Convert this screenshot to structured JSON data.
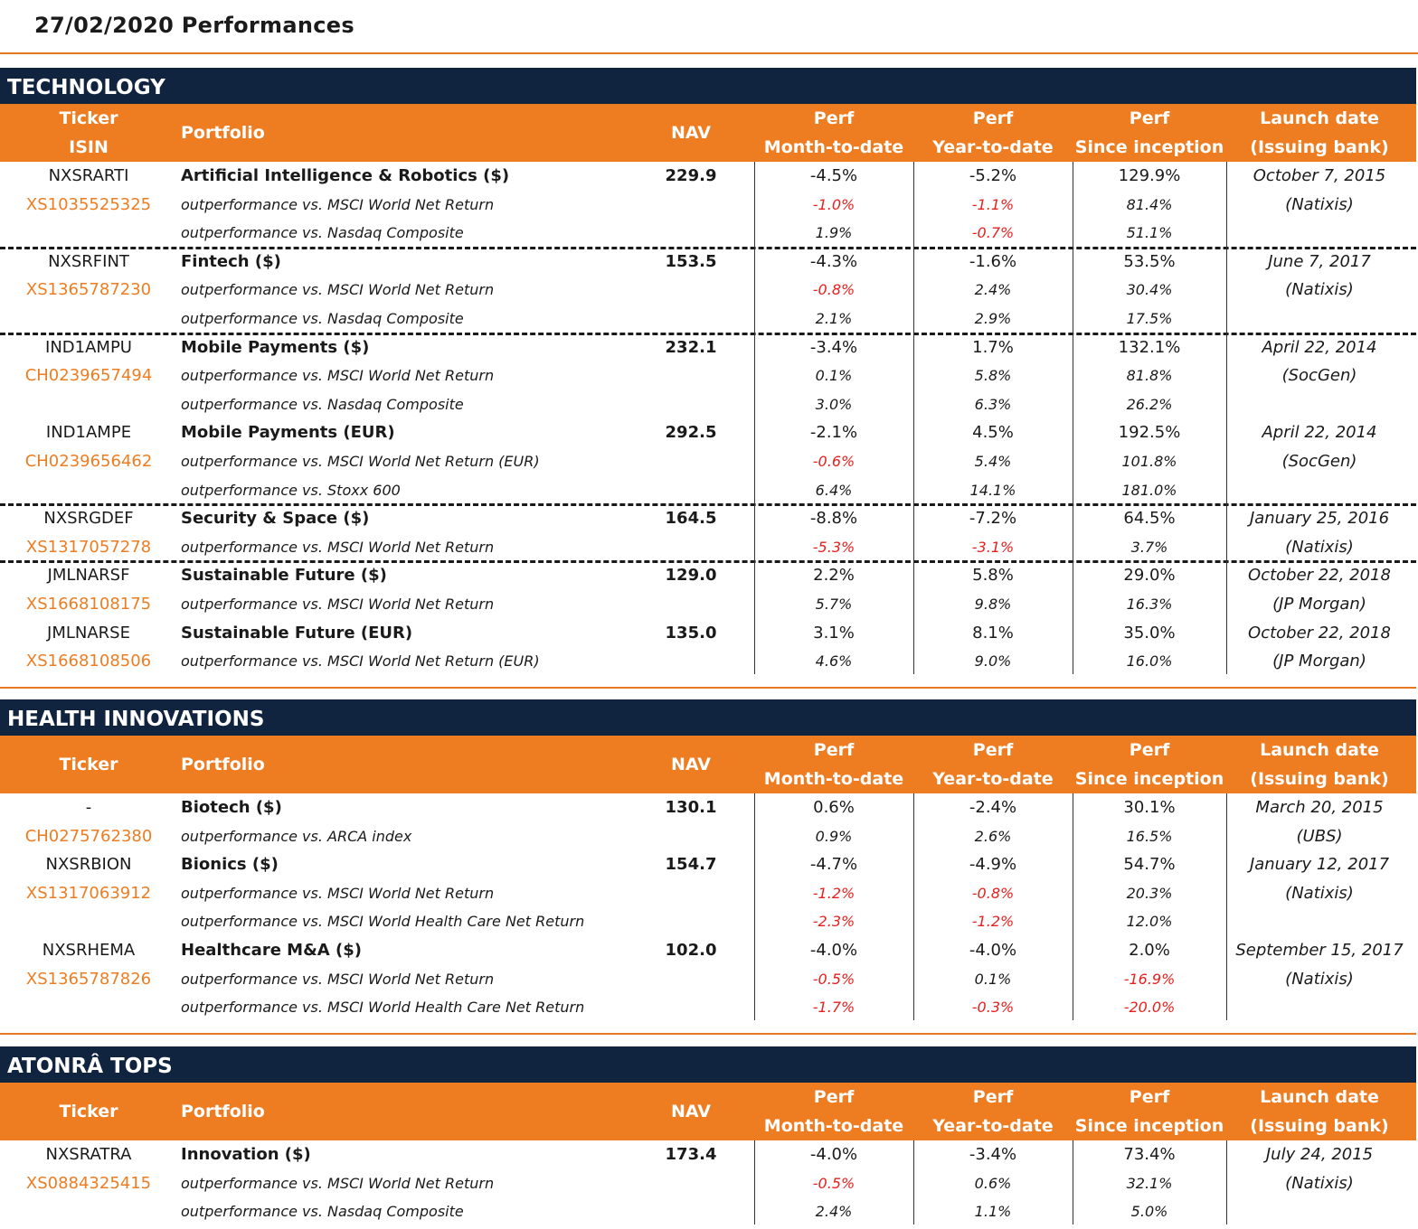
{
  "page_title": "27/02/2020  Performances",
  "columns": {
    "ticker": "Ticker",
    "isin": "ISIN",
    "portfolio": "Portfolio",
    "nav": "NAV",
    "perf": "Perf",
    "mtd": "Month-to-date",
    "ytd": "Year-to-date",
    "si": "Since inception",
    "launch": "Launch date",
    "issuer": "(Issuing bank)"
  },
  "sections": [
    {
      "name": "TECHNOLOGY",
      "show_isin_header": true,
      "funds": [
        {
          "ticker": "NXSRARTI",
          "isin": "XS1035525325",
          "name": "Artificial Intelligence & Robotics ($)",
          "nav": "229.9",
          "mtd": "-4.5%",
          "ytd": "-5.2%",
          "si": "129.9%",
          "date": "October 7, 2015",
          "bank": "(Natixis)",
          "subs": [
            {
              "label": "outperformance vs. MSCI World Net Return",
              "mtd": "-1.0%",
              "ytd": "-1.1%",
              "si": "81.4%"
            },
            {
              "label": "outperformance vs. Nasdaq Composite",
              "mtd": "1.9%",
              "ytd": "-0.7%",
              "si": "51.1%"
            }
          ]
        },
        {
          "ticker": "NXSRFINT",
          "isin": "XS1365787230",
          "name": "Fintech ($)",
          "nav": "153.5",
          "mtd": "-4.3%",
          "ytd": "-1.6%",
          "si": "53.5%",
          "date": "June 7, 2017",
          "bank": "(Natixis)",
          "subs": [
            {
              "label": "outperformance vs. MSCI World Net Return",
              "mtd": "-0.8%",
              "ytd": "2.4%",
              "si": "30.4%"
            },
            {
              "label": "outperformance vs. Nasdaq Composite",
              "mtd": "2.1%",
              "ytd": "2.9%",
              "si": "17.5%"
            }
          ]
        },
        {
          "ticker": "IND1AMPU",
          "isin": "CH0239657494",
          "name": "Mobile Payments ($)",
          "nav": "232.1",
          "mtd": "-3.4%",
          "ytd": "1.7%",
          "si": "132.1%",
          "date": "April 22, 2014",
          "bank": "(SocGen)",
          "subs": [
            {
              "label": "outperformance vs. MSCI World Net Return",
              "mtd": "0.1%",
              "ytd": "5.8%",
              "si": "81.8%"
            },
            {
              "label": "outperformance vs. Nasdaq Composite",
              "mtd": "3.0%",
              "ytd": "6.3%",
              "si": "26.2%"
            }
          ]
        },
        {
          "ticker": "IND1AMPE",
          "isin": "CH0239656462",
          "name": "Mobile Payments (EUR)",
          "nav": "292.5",
          "mtd": "-2.1%",
          "ytd": "4.5%",
          "si": "192.5%",
          "date": "April 22, 2014",
          "bank": "(SocGen)",
          "subs": [
            {
              "label": "outperformance vs. MSCI World Net Return (EUR)",
              "mtd": "-0.6%",
              "ytd": "5.4%",
              "si": "101.8%"
            },
            {
              "label": "outperformance vs. Stoxx 600",
              "mtd": "6.4%",
              "ytd": "14.1%",
              "si": "181.0%"
            }
          ]
        },
        {
          "ticker": "NXSRGDEF",
          "isin": "XS1317057278",
          "name": "Security & Space ($)",
          "nav": "164.5",
          "mtd": "-8.8%",
          "ytd": "-7.2%",
          "si": "64.5%",
          "date": "January 25, 2016",
          "bank": "(Natixis)",
          "subs": [
            {
              "label": "outperformance vs. MSCI World Net Return",
              "mtd": "-5.3%",
              "ytd": "-3.1%",
              "si": "3.7%"
            }
          ]
        },
        {
          "ticker": "JMLNARSF",
          "isin": "XS1668108175",
          "name": "Sustainable Future ($)",
          "nav": "129.0",
          "mtd": "2.2%",
          "ytd": "5.8%",
          "si": "29.0%",
          "date": "October 22, 2018",
          "bank": "(JP Morgan)",
          "subs": [
            {
              "label": "outperformance vs. MSCI World Net Return",
              "mtd": "5.7%",
              "ytd": "9.8%",
              "si": "16.3%"
            }
          ]
        },
        {
          "ticker": "JMLNARSE",
          "isin": "XS1668108506",
          "name": "Sustainable Future (EUR)",
          "nav": "135.0",
          "mtd": "3.1%",
          "ytd": "8.1%",
          "si": "35.0%",
          "date": "October 22, 2018",
          "bank": "(JP Morgan)",
          "subs": [
            {
              "label": "outperformance vs. MSCI World Net Return (EUR)",
              "mtd": "4.6%",
              "ytd": "9.0%",
              "si": "16.0%"
            }
          ]
        }
      ]
    },
    {
      "name": "HEALTH INNOVATIONS",
      "show_isin_header": false,
      "funds": [
        {
          "ticker": "-",
          "isin": "CH0275762380",
          "name": "Biotech ($)",
          "nav": "130.1",
          "mtd": "0.6%",
          "ytd": "-2.4%",
          "si": "30.1%",
          "date": "March 20, 2015",
          "bank": "(UBS)",
          "subs": [
            {
              "label": "outperformance vs. ARCA index",
              "mtd": "0.9%",
              "ytd": "2.6%",
              "si": "16.5%"
            }
          ]
        },
        {
          "ticker": "NXSRBION",
          "isin": "XS1317063912",
          "name": "Bionics ($)",
          "nav": "154.7",
          "mtd": "-4.7%",
          "ytd": "-4.9%",
          "si": "54.7%",
          "date": "January 12, 2017",
          "bank": "(Natixis)",
          "subs": [
            {
              "label": "outperformance vs. MSCI World Net Return",
              "mtd": "-1.2%",
              "ytd": "-0.8%",
              "si": "20.3%"
            },
            {
              "label": "outperformance vs. MSCI World Health Care Net Return",
              "mtd": "-2.3%",
              "ytd": "-1.2%",
              "si": "12.0%"
            }
          ]
        },
        {
          "ticker": "NXSRHEMA",
          "isin": "XS1365787826",
          "name": "Healthcare M&A ($)",
          "nav": "102.0",
          "mtd": "-4.0%",
          "ytd": "-4.0%",
          "si": "2.0%",
          "date": "September 15, 2017",
          "bank": "(Natixis)",
          "subs": [
            {
              "label": "outperformance vs. MSCI World Net Return",
              "mtd": "-0.5%",
              "ytd": "0.1%",
              "si": "-16.9%"
            },
            {
              "label": "outperformance vs. MSCI World Health Care Net Return",
              "mtd": "-1.7%",
              "ytd": "-0.3%",
              "si": "-20.0%"
            }
          ]
        }
      ]
    },
    {
      "name": "ATONRÂ TOPS",
      "show_isin_header": false,
      "funds": [
        {
          "ticker": "NXSRATRA",
          "isin": "XS0884325415",
          "name": "Innovation ($)",
          "nav": "173.4",
          "mtd": "-4.0%",
          "ytd": "-3.4%",
          "si": "73.4%",
          "date": "July 24, 2015",
          "bank": "(Natixis)",
          "subs": [
            {
              "label": "outperformance vs. MSCI World Net Return",
              "mtd": "-0.5%",
              "ytd": "0.6%",
              "si": "32.1%"
            },
            {
              "label": "outperformance vs. Nasdaq Composite",
              "mtd": "2.4%",
              "ytd": "1.1%",
              "si": "5.0%"
            }
          ]
        }
      ]
    }
  ],
  "colors": {
    "navy": "#10233f",
    "orange": "#ee7d22",
    "negative": "#e8201d"
  }
}
